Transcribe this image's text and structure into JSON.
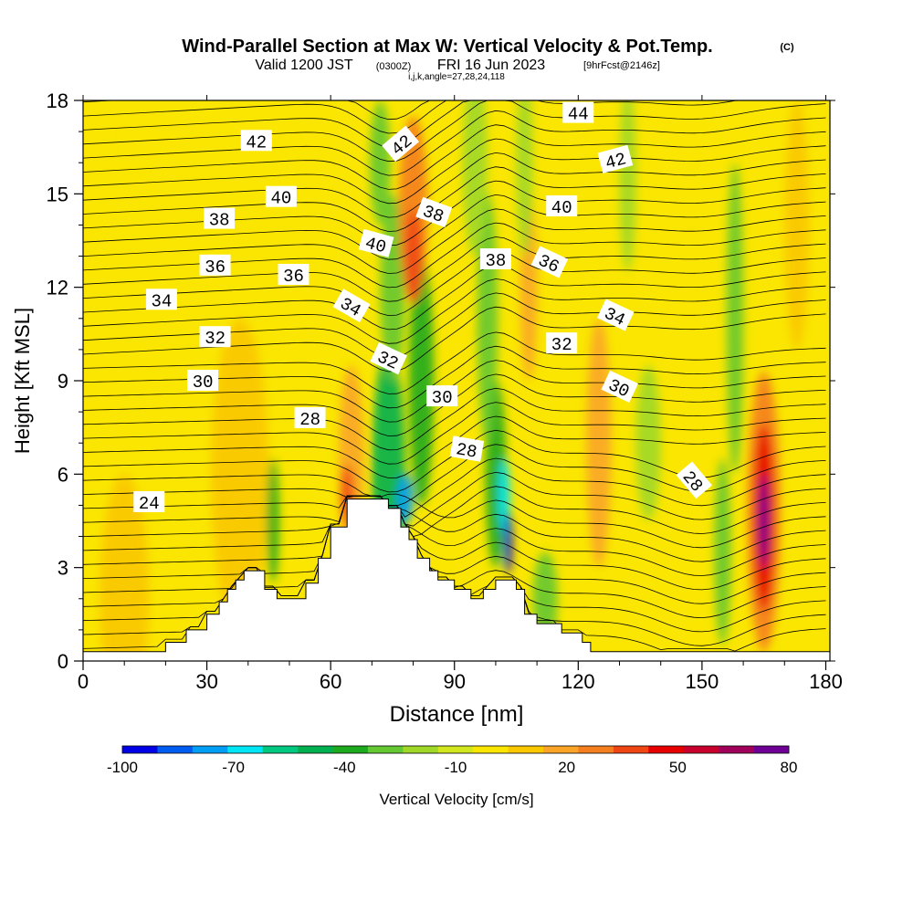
{
  "chart_data": {
    "type": "contour",
    "title": "Wind-Parallel Section at Max W: Vertical Velocity & Pot.Temp.",
    "title_mark": "(C)",
    "subtitle_valid": "Valid 1200 JST",
    "subtitle_utc": "(0300Z)",
    "subtitle_date": "FRI 16 Jun 2023",
    "subtitle_fcst": "[9hrFcst@2146z]",
    "subtitle_index": "i,j,k,angle=27,28,24,118",
    "xlabel": "Distance [nm]",
    "ylabel": "Height [Kft MSL]",
    "xlim": [
      0,
      181
    ],
    "ylim": [
      0,
      18
    ],
    "xticks": [
      0,
      30,
      60,
      90,
      120,
      150,
      180
    ],
    "yticks": [
      0,
      3,
      6,
      9,
      12,
      15,
      18
    ],
    "colorbar": {
      "label": "Vertical Velocity [cm/s]",
      "tick_labels": [
        -100,
        -70,
        -40,
        -10,
        20,
        50,
        80
      ],
      "bounds": [
        -100,
        -90,
        -80,
        -70,
        -60,
        -50,
        -40,
        -30,
        -20,
        -10,
        0,
        10,
        20,
        30,
        40,
        50,
        60,
        70,
        80
      ],
      "colors": [
        "#0000e6",
        "#005cf0",
        "#009ef5",
        "#00e6f5",
        "#00c880",
        "#00b050",
        "#1eaa1e",
        "#64c832",
        "#a0d828",
        "#d2e61e",
        "#fae600",
        "#fac800",
        "#faa528",
        "#f57e1e",
        "#f04614",
        "#e60000",
        "#c8002d",
        "#a0005a",
        "#6e0096"
      ]
    },
    "terrain_nm_kft": [
      [
        0,
        0.3
      ],
      [
        20,
        0.3
      ],
      [
        20,
        0.6
      ],
      [
        25,
        0.6
      ],
      [
        25,
        1.0
      ],
      [
        30,
        1.0
      ],
      [
        30,
        1.5
      ],
      [
        33,
        1.5
      ],
      [
        33,
        1.9
      ],
      [
        35,
        1.9
      ],
      [
        35,
        2.3
      ],
      [
        37,
        2.3
      ],
      [
        37,
        2.6
      ],
      [
        39,
        2.6
      ],
      [
        39,
        2.9
      ],
      [
        44,
        2.9
      ],
      [
        44,
        2.3
      ],
      [
        47,
        2.3
      ],
      [
        47,
        2.0
      ],
      [
        54,
        2.0
      ],
      [
        54,
        2.5
      ],
      [
        57,
        2.5
      ],
      [
        57,
        3.3
      ],
      [
        60,
        3.3
      ],
      [
        60,
        4.3
      ],
      [
        64,
        4.3
      ],
      [
        64,
        5.2
      ],
      [
        74,
        5.2
      ],
      [
        74,
        4.9
      ],
      [
        77,
        4.9
      ],
      [
        77,
        4.3
      ],
      [
        79,
        4.3
      ],
      [
        79,
        3.9
      ],
      [
        81,
        3.9
      ],
      [
        81,
        3.3
      ],
      [
        84,
        3.3
      ],
      [
        84,
        2.9
      ],
      [
        86,
        2.9
      ],
      [
        86,
        2.6
      ],
      [
        90,
        2.6
      ],
      [
        90,
        2.3
      ],
      [
        94,
        2.3
      ],
      [
        94,
        2.0
      ],
      [
        97,
        2.0
      ],
      [
        97,
        2.3
      ],
      [
        100,
        2.3
      ],
      [
        100,
        2.6
      ],
      [
        105,
        2.6
      ],
      [
        105,
        2.3
      ],
      [
        107,
        2.3
      ],
      [
        107,
        1.5
      ],
      [
        110,
        1.5
      ],
      [
        110,
        1.2
      ],
      [
        116,
        1.2
      ],
      [
        116,
        0.9
      ],
      [
        121,
        0.9
      ],
      [
        121,
        0.6
      ],
      [
        123,
        0.6
      ],
      [
        123,
        0.3
      ],
      [
        181,
        0.3
      ]
    ],
    "w_cells": [
      {
        "x": 10,
        "z": 2,
        "rx": 6,
        "rz": 4,
        "w": 15
      },
      {
        "x": 38,
        "z": 6,
        "rx": 7,
        "rz": 5,
        "w": 10
      },
      {
        "x": 5,
        "z": 14,
        "rx": 6,
        "rz": 5,
        "w": 5
      },
      {
        "x": 46,
        "z": 4.5,
        "rx": 1.5,
        "rz": 2,
        "w": -35
      },
      {
        "x": 65,
        "z": 6.5,
        "rx": 3,
        "rz": 3,
        "w": 20
      },
      {
        "x": 64,
        "z": 5.3,
        "rx": 1.5,
        "rz": 1,
        "w": 45
      },
      {
        "x": 74,
        "z": 6,
        "rx": 4,
        "rz": 4,
        "w": -45
      },
      {
        "x": 78,
        "z": 5.2,
        "rx": 2,
        "rz": 0.8,
        "w": -75
      },
      {
        "x": 82,
        "z": 9,
        "rx": 3,
        "rz": 4,
        "w": -40
      },
      {
        "x": 75,
        "z": 12,
        "rx": 3,
        "rz": 3,
        "w": -30
      },
      {
        "x": 72,
        "z": 16,
        "rx": 2.5,
        "rz": 2,
        "w": -30
      },
      {
        "x": 80,
        "z": 14.5,
        "rx": 3.5,
        "rz": 3,
        "w": 30
      },
      {
        "x": 80,
        "z": 13,
        "rx": 2,
        "rz": 1.5,
        "w": 45
      },
      {
        "x": 100,
        "z": 6,
        "rx": 2.5,
        "rz": 3,
        "w": -40
      },
      {
        "x": 102,
        "z": 5.3,
        "rx": 1.5,
        "rz": 1.2,
        "w": -65
      },
      {
        "x": 103,
        "z": 3.8,
        "rx": 1,
        "rz": 1,
        "w": -95
      },
      {
        "x": 98,
        "z": 11,
        "rx": 2.5,
        "rz": 4,
        "w": -30
      },
      {
        "x": 95,
        "z": 16,
        "rx": 3,
        "rz": 3,
        "w": -20
      },
      {
        "x": 108,
        "z": 12,
        "rx": 2,
        "rz": 3,
        "w": 25
      },
      {
        "x": 107,
        "z": 16,
        "rx": 2,
        "rz": 3,
        "w": -20
      },
      {
        "x": 112,
        "z": 2,
        "rx": 3,
        "rz": 1.5,
        "w": -25
      },
      {
        "x": 125,
        "z": 7,
        "rx": 3,
        "rz": 4,
        "w": 20
      },
      {
        "x": 132,
        "z": 15.5,
        "rx": 2,
        "rz": 3,
        "w": -15
      },
      {
        "x": 137,
        "z": 7,
        "rx": 3,
        "rz": 2.5,
        "w": -15
      },
      {
        "x": 155,
        "z": 3.5,
        "rx": 2,
        "rz": 3,
        "w": -30
      },
      {
        "x": 158,
        "z": 11,
        "rx": 2,
        "rz": 5,
        "w": -25
      },
      {
        "x": 165,
        "z": 4.8,
        "rx": 4,
        "rz": 4.5,
        "w": 35
      },
      {
        "x": 165,
        "z": 4.6,
        "rx": 2.5,
        "rz": 3,
        "w": 55
      },
      {
        "x": 165,
        "z": 4.5,
        "rx": 1.2,
        "rz": 1.5,
        "w": 80
      },
      {
        "x": 173,
        "z": 14,
        "rx": 3,
        "rz": 4,
        "w": 15
      }
    ],
    "theta_contour_labels": [
      {
        "text": "24",
        "x": 16,
        "z": 5.1,
        "angle": 0
      },
      {
        "text": "28",
        "x": 55,
        "z": 7.8,
        "angle": 0
      },
      {
        "text": "28",
        "x": 93,
        "z": 6.8,
        "angle": 10
      },
      {
        "text": "28",
        "x": 148,
        "z": 5.8,
        "angle": 50
      },
      {
        "text": "30",
        "x": 29,
        "z": 9.0,
        "angle": 0
      },
      {
        "text": "30",
        "x": 87,
        "z": 8.5,
        "angle": 0
      },
      {
        "text": "30",
        "x": 130,
        "z": 8.8,
        "angle": 25
      },
      {
        "text": "32",
        "x": 32,
        "z": 10.4,
        "angle": 0
      },
      {
        "text": "32",
        "x": 74,
        "z": 9.7,
        "angle": 25
      },
      {
        "text": "32",
        "x": 116,
        "z": 10.2,
        "angle": 0
      },
      {
        "text": "34",
        "x": 19,
        "z": 11.6,
        "angle": 0
      },
      {
        "text": "34",
        "x": 65,
        "z": 11.4,
        "angle": 30
      },
      {
        "text": "34",
        "x": 129,
        "z": 11.1,
        "angle": 25
      },
      {
        "text": "36",
        "x": 32,
        "z": 12.7,
        "angle": 0
      },
      {
        "text": "36",
        "x": 51,
        "z": 12.4,
        "angle": 0
      },
      {
        "text": "36",
        "x": 113,
        "z": 12.8,
        "angle": 25
      },
      {
        "text": "38",
        "x": 33,
        "z": 14.2,
        "angle": 0
      },
      {
        "text": "38",
        "x": 85,
        "z": 14.4,
        "angle": 20
      },
      {
        "text": "38",
        "x": 100,
        "z": 12.9,
        "angle": 0
      },
      {
        "text": "40",
        "x": 48,
        "z": 14.9,
        "angle": 0
      },
      {
        "text": "40",
        "x": 71,
        "z": 13.4,
        "angle": 15
      },
      {
        "text": "40",
        "x": 116,
        "z": 14.6,
        "angle": 0
      },
      {
        "text": "42",
        "x": 42,
        "z": 16.7,
        "angle": 0
      },
      {
        "text": "42",
        "x": 77,
        "z": 16.6,
        "angle": -40
      },
      {
        "text": "42",
        "x": 129,
        "z": 16.1,
        "angle": -15
      },
      {
        "text": "44",
        "x": 120,
        "z": 17.6,
        "angle": 0
      }
    ]
  }
}
